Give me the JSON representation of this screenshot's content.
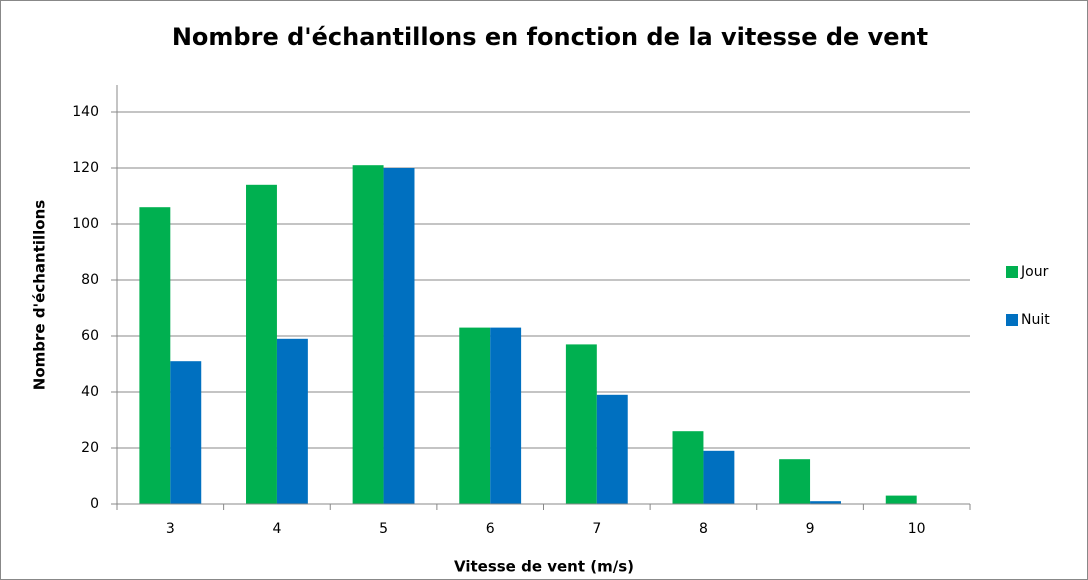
{
  "chart_data": {
    "type": "bar",
    "title": "Nombre d'échantillons en fonction de la vitesse de vent",
    "x_label": "Vitesse de vent (m/s)",
    "y_label": "Nombre d'échantillons",
    "categories": [
      "3",
      "4",
      "5",
      "6",
      "7",
      "8",
      "9",
      "10"
    ],
    "series": [
      {
        "name": "Jour",
        "color": "#00b050",
        "values": [
          106,
          114,
          121,
          63,
          57,
          26,
          16,
          3
        ]
      },
      {
        "name": "Nuit",
        "color": "#0070c0",
        "values": [
          51,
          59,
          120,
          63,
          39,
          19,
          1,
          0
        ]
      }
    ],
    "ylim": [
      0,
      140
    ],
    "yticks": [
      0,
      20,
      40,
      60,
      80,
      100,
      120,
      140
    ],
    "grid": true,
    "legend": "right"
  }
}
